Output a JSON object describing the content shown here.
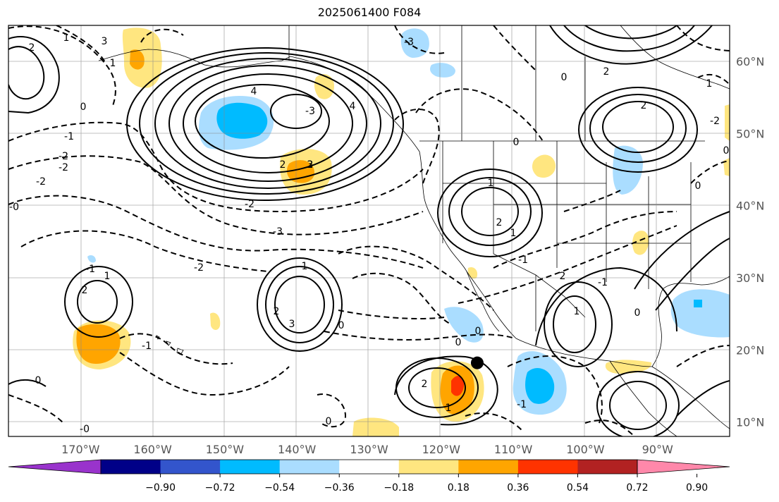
{
  "title": "2025061400 F084",
  "map": {
    "lon_range": [
      -180,
      -80
    ],
    "lat_range": [
      8,
      65
    ],
    "lon_ticks": [
      "170°W",
      "160°W",
      "150°W",
      "140°W",
      "130°W",
      "120°W",
      "110°W",
      "100°W",
      "90°W"
    ],
    "lat_ticks": [
      "10°N",
      "20°N",
      "30°N",
      "40°N",
      "50°N",
      "60°N"
    ],
    "gridlines": true
  },
  "colorbar": {
    "colors": [
      "#9933cc",
      "#000088",
      "#3355cc",
      "#00bbff",
      "#aaddff",
      "#ffffff",
      "#ffe680",
      "#ffa500",
      "#ff3300",
      "#b22222",
      "#ff88aa"
    ],
    "labels": [
      "−0.90",
      "−0.72",
      "−0.54",
      "−0.36",
      "−0.18",
      "0.18",
      "0.36",
      "0.54",
      "0.72",
      "0.90"
    ],
    "extend": "both"
  },
  "contour_labels": [
    "1",
    "2",
    "3",
    "1",
    "-1",
    "-2",
    "-2",
    "-3",
    "2",
    "3",
    "4",
    "4",
    "0",
    "-1",
    "1",
    "2",
    "-2",
    "-3",
    "-2",
    "1",
    "2",
    "3",
    "0",
    "-0",
    "0",
    "1",
    "2",
    "2",
    "0",
    "1",
    "1",
    "2",
    "0",
    "-1",
    "0",
    "1",
    "2",
    "0",
    "-1",
    "0",
    "0",
    "2",
    "-1",
    "-2",
    "-0",
    "0",
    "-1",
    "1",
    "-2",
    "2",
    "-3",
    "0"
  ],
  "marker": {
    "lon": -115.0,
    "lat": 18.2,
    "name": "storm-center"
  }
}
